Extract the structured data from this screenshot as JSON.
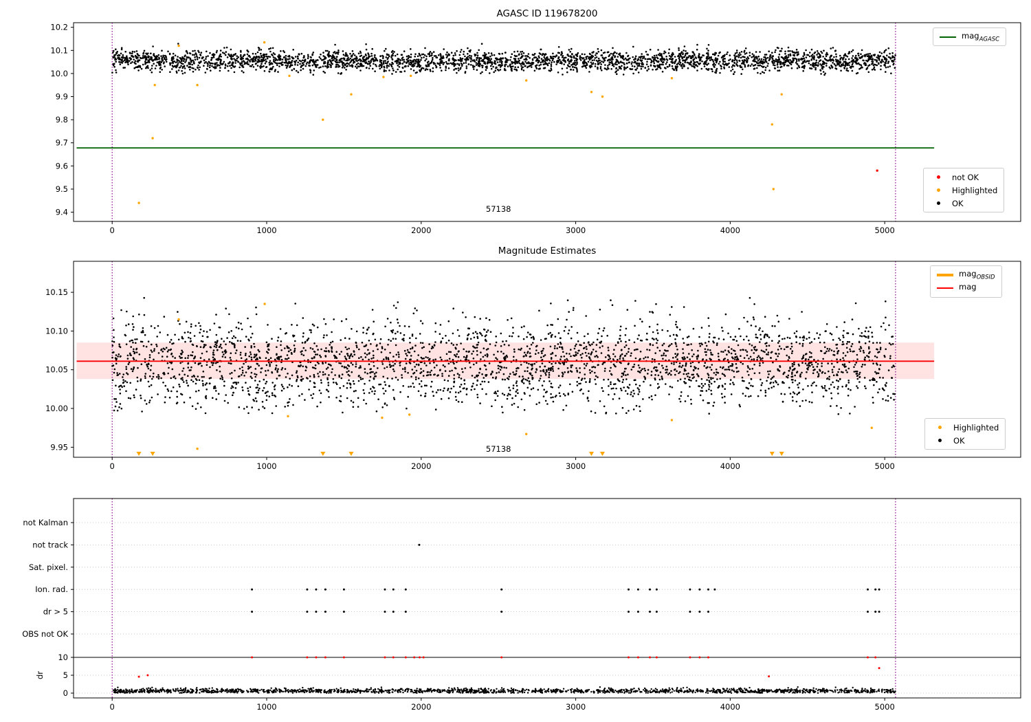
{
  "colors": {
    "ok": "#000000",
    "highlighted": "#ffa500",
    "not_ok": "#ff0000",
    "mag_agasc_line": "#006400",
    "mag_line": "#ff0000",
    "obsid_line": "#ffa500",
    "vline": "#8b008b",
    "mag_band": "rgba(255,60,60,0.15)",
    "grid": "#b8b8b8",
    "axis": "#000000"
  },
  "chart_data": [
    {
      "id": "agasc-mag",
      "type": "scatter",
      "title": "AGASC ID 119678200",
      "xlim": [
        -250,
        5880
      ],
      "ylim": [
        9.36,
        10.22
      ],
      "xticks": [
        0,
        1000,
        2000,
        3000,
        4000,
        5000
      ],
      "yticks": [
        10.2,
        10.1,
        10.0,
        9.9,
        9.8,
        9.7,
        9.6,
        9.5,
        9.4
      ],
      "ytick_labels": [
        "10.2",
        "10.1",
        "10.0",
        "9.9",
        "9.8",
        "9.7",
        "9.6",
        "9.5",
        "9.4"
      ],
      "vlines": [
        0,
        5070
      ],
      "ref_line": {
        "y": 9.678,
        "x0": -230,
        "x1": 5320,
        "color_key": "mag_agasc_line",
        "name": "mag-agasc-line"
      },
      "annotation": {
        "text": "57138",
        "x": 2500,
        "y": 9.402
      },
      "ok_cloud": {
        "n": 3200,
        "x0": 0,
        "x1": 5070,
        "mean": 10.055,
        "sd": 0.023,
        "min": 9.994,
        "max": 10.132,
        "seed": 11,
        "wobble_amp": 0.004,
        "wobble_freq": 0.009
      },
      "highlighted": [
        [
          173,
          9.44
        ],
        [
          262,
          9.72
        ],
        [
          276,
          9.95
        ],
        [
          431,
          10.12
        ],
        [
          551,
          9.95
        ],
        [
          985,
          10.135
        ],
        [
          1147,
          9.99
        ],
        [
          1364,
          9.8
        ],
        [
          1547,
          9.91
        ],
        [
          1756,
          9.985
        ],
        [
          1933,
          9.99
        ],
        [
          2680,
          9.97
        ],
        [
          3102,
          9.92
        ],
        [
          3173,
          9.9
        ],
        [
          3622,
          9.98
        ],
        [
          4271,
          9.78
        ],
        [
          4280,
          9.5
        ],
        [
          4333,
          9.91
        ]
      ],
      "not_ok": [
        [
          4951,
          9.58
        ]
      ],
      "legend_line": {
        "items": [
          {
            "label_main": "mag",
            "label_sub": "AGASC",
            "color_key": "mag_agasc_line"
          }
        ]
      },
      "legend_points": {
        "items": [
          {
            "label": "not OK",
            "color_key": "not_ok"
          },
          {
            "label": "Highlighted",
            "color_key": "highlighted"
          },
          {
            "label": "OK",
            "color_key": "ok"
          }
        ]
      }
    },
    {
      "id": "mag-estimates",
      "type": "scatter",
      "title": "Magnitude Estimates",
      "xlim": [
        -250,
        5880
      ],
      "ylim": [
        9.937,
        10.19
      ],
      "xticks": [
        0,
        1000,
        2000,
        3000,
        4000,
        5000
      ],
      "yticks": [
        10.15,
        10.1,
        10.05,
        10.0,
        9.95
      ],
      "ytick_labels": [
        "10.15",
        "10.10",
        "10.05",
        "10.00",
        "9.95"
      ],
      "vlines": [
        0,
        5070
      ],
      "band": {
        "x0": -230,
        "x1": 5320,
        "y0": 10.038,
        "y1": 10.085
      },
      "ref_line": {
        "y": 10.061,
        "x0": -230,
        "x1": 5320,
        "color_key": "mag_line",
        "name": "mag-line"
      },
      "annotation": {
        "text": "57138",
        "x": 2500,
        "y": 9.944
      },
      "ok_cloud": {
        "n": 3000,
        "x0": 0,
        "x1": 5070,
        "mean": 10.058,
        "sd": 0.028,
        "min": 9.992,
        "max": 10.143,
        "seed": 7,
        "wobble_amp": 0.006,
        "wobble_freq": 0.011
      },
      "highlighted": [
        [
          431,
          10.115
        ],
        [
          551,
          9.948
        ],
        [
          987,
          10.135
        ],
        [
          1138,
          9.99
        ],
        [
          1747,
          9.988
        ],
        [
          1924,
          9.992
        ],
        [
          2680,
          9.967
        ],
        [
          3622,
          9.985
        ],
        [
          4916,
          9.975
        ]
      ],
      "clip_triangles_x": [
        173,
        262,
        1364,
        1547,
        3102,
        3173,
        4271,
        4333
      ],
      "legend_lines": {
        "items": [
          {
            "label_main": "mag",
            "label_sub": "OBSID",
            "color_key": "obsid_line",
            "thick": true
          },
          {
            "label_main": "mag",
            "label_sub": "",
            "color_key": "mag_line",
            "thick": false
          }
        ]
      },
      "legend_points": {
        "items": [
          {
            "label": "Highlighted",
            "color_key": "highlighted"
          },
          {
            "label": "OK",
            "color_key": "ok"
          }
        ]
      }
    },
    {
      "id": "flags",
      "type": "scatter",
      "title": "",
      "xlim": [
        -250,
        5880
      ],
      "xticks": [
        0,
        1000,
        2000,
        3000,
        4000,
        5000
      ],
      "vlines": [
        0,
        5070
      ],
      "rows": [
        "not Kalman",
        "not track",
        "Sat. pixel.",
        "Ion. rad.",
        "dr > 5",
        "OBS not OK"
      ],
      "flag_points": [
        {
          "row": "not track",
          "x": [
            1987
          ]
        },
        {
          "row": "Ion. rad.",
          "x": [
            905,
            1262,
            1320,
            1380,
            1500,
            1765,
            1820,
            1900,
            2520,
            3342,
            3404,
            3480,
            3524,
            3740,
            3802,
            3858,
            3900,
            4890,
            4940,
            4964
          ]
        },
        {
          "row": "dr > 5",
          "x": [
            905,
            1262,
            1320,
            1380,
            1500,
            1765,
            1820,
            1900,
            2520,
            3342,
            3404,
            3480,
            3524,
            3740,
            3802,
            3858,
            4890,
            4940,
            4964
          ]
        }
      ],
      "dr": {
        "ticks": [
          0,
          5,
          10
        ],
        "tick_labels": [
          "0",
          "5",
          "10"
        ],
        "limit_line": 10,
        "red_points": [
          [
            173,
            4.6
          ],
          [
            230,
            5.0
          ],
          [
            905,
            10
          ],
          [
            1262,
            10
          ],
          [
            1320,
            10
          ],
          [
            1380,
            10
          ],
          [
            1500,
            10
          ],
          [
            1765,
            10
          ],
          [
            1820,
            10
          ],
          [
            1900,
            10
          ],
          [
            1955,
            10
          ],
          [
            1990,
            10
          ],
          [
            2015,
            10
          ],
          [
            2520,
            10
          ],
          [
            3342,
            10
          ],
          [
            3404,
            10
          ],
          [
            3480,
            10
          ],
          [
            3524,
            10
          ],
          [
            3740,
            10
          ],
          [
            3802,
            10
          ],
          [
            3858,
            10
          ],
          [
            4250,
            4.7
          ],
          [
            4890,
            10
          ],
          [
            4940,
            10
          ],
          [
            4964,
            7.0
          ]
        ],
        "cloud": {
          "n": 1700,
          "x0": 0,
          "x1": 5070,
          "mean": 0.55,
          "sd": 0.38,
          "min": 0.03,
          "max": 2.8,
          "seed": 23
        }
      },
      "ylabel": "dr"
    }
  ]
}
